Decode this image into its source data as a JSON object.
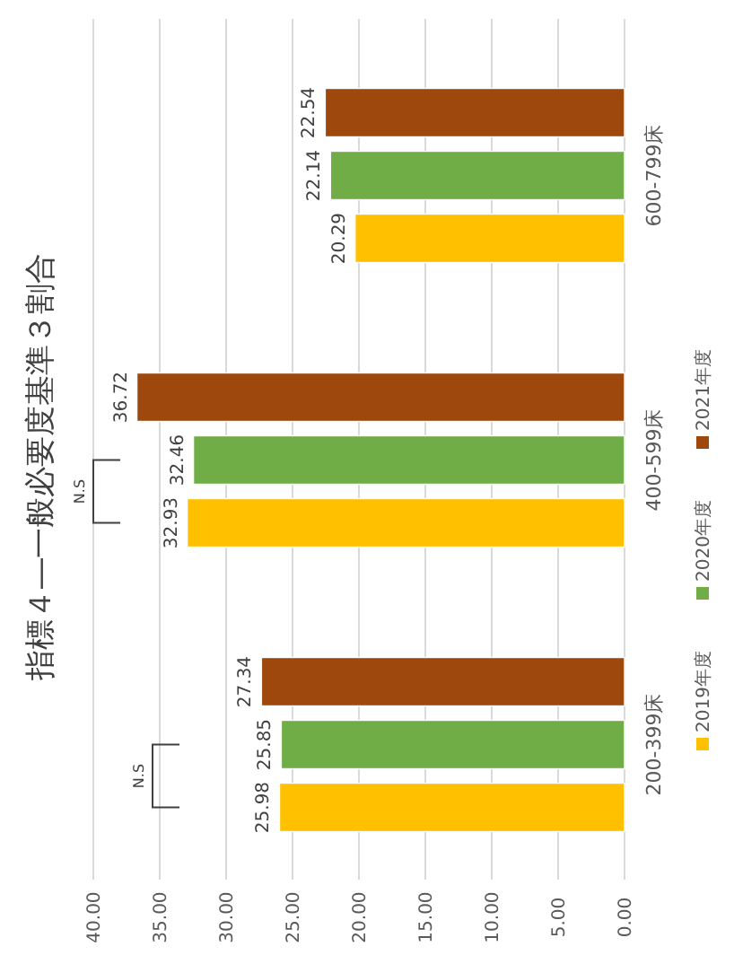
{
  "chart_data": {
    "type": "bar",
    "orientation": "horizontal",
    "title": "指標４―一般必要度基準３割合",
    "categories": [
      "600-799床",
      "400-599床",
      "200-399床"
    ],
    "series": [
      {
        "name": "2019年度",
        "color": "#ffc000",
        "values": [
          20.29,
          32.93,
          25.98
        ]
      },
      {
        "name": "2020年度",
        "color": "#70ad47",
        "values": [
          22.14,
          32.46,
          25.85
        ]
      },
      {
        "name": "2021年度",
        "color": "#9e480e",
        "values": [
          22.54,
          36.72,
          27.34
        ]
      }
    ],
    "xlim": [
      40,
      0
    ],
    "xticks": [
      {
        "value": 40,
        "label": "40.00"
      },
      {
        "value": 35,
        "label": "35.00"
      },
      {
        "value": 30,
        "label": "30.00"
      },
      {
        "value": 25,
        "label": "25.00"
      },
      {
        "value": 20,
        "label": "20.00"
      },
      {
        "value": 15,
        "label": "15.00"
      },
      {
        "value": 10,
        "label": "10.00"
      },
      {
        "value": 5,
        "label": "5.00"
      },
      {
        "value": 0,
        "label": "0.00"
      }
    ],
    "grid": "x",
    "legend": "right",
    "data_labels": true,
    "annotations": [
      "N.S",
      "N.S"
    ]
  }
}
